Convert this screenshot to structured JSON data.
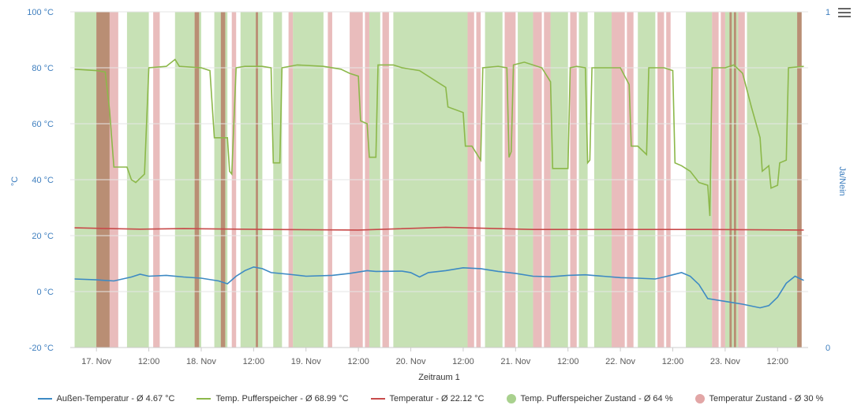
{
  "chart_data": {
    "type": "line",
    "title": "",
    "xlabel": "Zeitraum 1",
    "ylabel_left": "°C",
    "ylabel_right": "Ja/Nein",
    "ylim_left": [
      -20,
      100
    ],
    "yticks_left": [
      "-20 °C",
      "0 °C",
      "20 °C",
      "40 °C",
      "60 °C",
      "80 °C",
      "100 °C"
    ],
    "yticks_left_values": [
      -20,
      0,
      20,
      40,
      60,
      80,
      100
    ],
    "ylim_right": [
      0,
      1
    ],
    "yticks_right": [
      "0",
      "1"
    ],
    "xlim_hours": [
      -6,
      163
    ],
    "x_ticks": [
      {
        "label": "17. Nov",
        "hour": 0
      },
      {
        "label": "12:00",
        "hour": 12
      },
      {
        "label": "18. Nov",
        "hour": 24
      },
      {
        "label": "12:00",
        "hour": 36
      },
      {
        "label": "19. Nov",
        "hour": 48
      },
      {
        "label": "12:00",
        "hour": 60
      },
      {
        "label": "20. Nov",
        "hour": 72
      },
      {
        "label": "12:00",
        "hour": 84
      },
      {
        "label": "21. Nov",
        "hour": 96
      },
      {
        "label": "12:00",
        "hour": 108
      },
      {
        "label": "22. Nov",
        "hour": 120
      },
      {
        "label": "12:00",
        "hour": 132
      },
      {
        "label": "23. Nov",
        "hour": 144
      },
      {
        "label": "12:00",
        "hour": 156
      }
    ],
    "series": [
      {
        "name": "Außen-Temperatur - Ø 4.67 °C",
        "color": "#3d8ac4",
        "points": [
          [
            -5,
            4.5
          ],
          [
            0,
            4.2
          ],
          [
            4,
            3.8
          ],
          [
            8,
            5.2
          ],
          [
            10,
            6.2
          ],
          [
            12,
            5.5
          ],
          [
            16,
            5.8
          ],
          [
            20,
            5.2
          ],
          [
            24,
            4.8
          ],
          [
            28,
            3.8
          ],
          [
            30,
            2.8
          ],
          [
            32,
            5.5
          ],
          [
            34,
            7.5
          ],
          [
            36,
            8.8
          ],
          [
            38,
            8.2
          ],
          [
            40,
            6.8
          ],
          [
            44,
            6.2
          ],
          [
            48,
            5.5
          ],
          [
            54,
            5.8
          ],
          [
            58,
            6.5
          ],
          [
            62,
            7.5
          ],
          [
            64,
            7.2
          ],
          [
            70,
            7.3
          ],
          [
            72,
            6.8
          ],
          [
            74,
            5.2
          ],
          [
            76,
            6.8
          ],
          [
            80,
            7.5
          ],
          [
            84,
            8.5
          ],
          [
            88,
            8.2
          ],
          [
            92,
            7.2
          ],
          [
            96,
            6.5
          ],
          [
            100,
            5.5
          ],
          [
            104,
            5.3
          ],
          [
            108,
            5.8
          ],
          [
            112,
            6.0
          ],
          [
            116,
            5.5
          ],
          [
            120,
            5.0
          ],
          [
            124,
            4.8
          ],
          [
            128,
            4.5
          ],
          [
            130,
            5.2
          ],
          [
            132,
            6.0
          ],
          [
            134,
            6.8
          ],
          [
            136,
            5.5
          ],
          [
            138,
            2.5
          ],
          [
            140,
            -2.5
          ],
          [
            144,
            -3.5
          ],
          [
            148,
            -4.5
          ],
          [
            152,
            -5.8
          ],
          [
            154,
            -5.0
          ],
          [
            156,
            -2.0
          ],
          [
            158,
            3.0
          ],
          [
            160,
            5.5
          ],
          [
            162,
            4.0
          ]
        ]
      },
      {
        "name": "Temp. Pufferspeicher - Ø 68.99 °C",
        "color": "#8cb84a",
        "points": [
          [
            -5,
            79.5
          ],
          [
            0,
            79
          ],
          [
            2,
            78.5
          ],
          [
            3,
            65
          ],
          [
            4,
            44.5
          ],
          [
            7,
            44.5
          ],
          [
            8,
            40
          ],
          [
            9,
            39
          ],
          [
            11,
            42
          ],
          [
            12,
            80
          ],
          [
            16,
            80.5
          ],
          [
            18,
            83
          ],
          [
            19,
            80.5
          ],
          [
            24,
            80
          ],
          [
            26,
            79
          ],
          [
            27,
            55
          ],
          [
            30,
            55
          ],
          [
            30.5,
            43
          ],
          [
            31,
            42
          ],
          [
            32,
            80
          ],
          [
            34,
            80.5
          ],
          [
            38,
            80.5
          ],
          [
            40,
            80
          ],
          [
            40.5,
            46
          ],
          [
            42,
            46
          ],
          [
            42.5,
            80
          ],
          [
            46,
            81
          ],
          [
            52,
            80.5
          ],
          [
            56,
            79.5
          ],
          [
            58,
            78
          ],
          [
            60,
            77
          ],
          [
            60.5,
            61
          ],
          [
            62,
            60
          ],
          [
            62.5,
            48
          ],
          [
            64,
            48
          ],
          [
            64.5,
            81
          ],
          [
            68,
            81
          ],
          [
            70,
            80
          ],
          [
            74,
            79
          ],
          [
            78,
            75
          ],
          [
            80,
            73
          ],
          [
            80.5,
            66
          ],
          [
            84,
            64
          ],
          [
            84.5,
            52
          ],
          [
            86,
            52
          ],
          [
            88,
            47
          ],
          [
            88.5,
            80
          ],
          [
            92,
            80.5
          ],
          [
            94,
            80
          ],
          [
            94.5,
            48
          ],
          [
            95,
            50
          ],
          [
            95.5,
            81
          ],
          [
            98,
            82
          ],
          [
            102,
            80
          ],
          [
            104,
            75
          ],
          [
            104.5,
            44
          ],
          [
            108,
            44
          ],
          [
            108.5,
            80
          ],
          [
            110,
            80.5
          ],
          [
            112,
            80
          ],
          [
            112.5,
            46
          ],
          [
            113,
            47
          ],
          [
            113.5,
            80
          ],
          [
            116,
            80
          ],
          [
            120,
            80
          ],
          [
            122,
            74
          ],
          [
            122.5,
            52
          ],
          [
            124,
            52
          ],
          [
            126,
            49
          ],
          [
            126.5,
            80
          ],
          [
            130,
            80
          ],
          [
            132,
            79
          ],
          [
            132.5,
            46
          ],
          [
            134,
            45
          ],
          [
            136,
            43
          ],
          [
            138,
            39
          ],
          [
            140,
            38
          ],
          [
            140.5,
            27
          ],
          [
            141,
            80
          ],
          [
            144,
            80
          ],
          [
            146,
            81
          ],
          [
            148,
            78
          ],
          [
            150,
            66
          ],
          [
            152,
            55
          ],
          [
            152.5,
            43
          ],
          [
            154,
            45
          ],
          [
            154.5,
            37
          ],
          [
            156,
            38
          ],
          [
            156.5,
            46
          ],
          [
            158,
            47
          ],
          [
            158.5,
            80
          ],
          [
            162,
            80.5
          ]
        ]
      },
      {
        "name": "Temperatur - Ø 22.12 °C",
        "color": "#c84a4a",
        "points": [
          [
            -5,
            22.8
          ],
          [
            10,
            22.3
          ],
          [
            20,
            22.5
          ],
          [
            40,
            22.2
          ],
          [
            60,
            22.0
          ],
          [
            80,
            23.0
          ],
          [
            100,
            22.2
          ],
          [
            120,
            22.2
          ],
          [
            140,
            22.2
          ],
          [
            162,
            22.0
          ]
        ]
      }
    ],
    "state_series": [
      {
        "name": "Temp. Pufferspeicher Zustand - Ø 64 %",
        "color": "#a9d18e",
        "intervals": [
          [
            -5,
            3
          ],
          [
            7,
            12
          ],
          [
            18,
            24
          ],
          [
            27,
            30
          ],
          [
            33,
            38
          ],
          [
            40.5,
            42.5
          ],
          [
            45,
            52
          ],
          [
            62.5,
            65
          ],
          [
            68,
            85
          ],
          [
            89,
            93
          ],
          [
            96.5,
            100
          ],
          [
            104,
            108
          ],
          [
            110.5,
            112.5
          ],
          [
            114,
            118
          ],
          [
            124,
            128
          ],
          [
            135,
            141
          ],
          [
            144,
            147
          ],
          [
            149,
            161.5
          ]
        ]
      },
      {
        "name": "Temperatur Zustand - Ø 30 %",
        "color": "#e2a6a6",
        "intervals": [
          [
            0,
            5
          ],
          [
            13,
            14.5
          ],
          [
            22.5,
            23.5
          ],
          [
            28.5,
            29.5
          ],
          [
            31,
            32
          ],
          [
            36.5,
            37
          ],
          [
            44,
            45
          ],
          [
            53,
            54
          ],
          [
            58,
            61
          ],
          [
            61.5,
            62.5
          ],
          [
            65.5,
            67
          ],
          [
            85,
            86.5
          ],
          [
            87,
            88
          ],
          [
            93.5,
            96
          ],
          [
            100,
            102
          ],
          [
            102.5,
            104
          ],
          [
            108.5,
            110
          ],
          [
            118,
            121
          ],
          [
            121.5,
            123
          ],
          [
            128.5,
            130
          ],
          [
            130.5,
            131.5
          ],
          [
            141,
            142.5
          ],
          [
            143,
            144
          ],
          [
            145,
            145.5
          ],
          [
            146,
            146.5
          ],
          [
            147,
            148.5
          ],
          [
            160.5,
            161.5
          ]
        ]
      }
    ],
    "overlap_color": "#b58a6e",
    "grid": "horizontal"
  },
  "legend": [
    {
      "label": "Außen-Temperatur - Ø 4.67 °C",
      "kind": "line",
      "color": "#3d8ac4"
    },
    {
      "label": "Temp. Pufferspeicher - Ø 68.99 °C",
      "kind": "line",
      "color": "#8cb84a"
    },
    {
      "label": "Temperatur - Ø 22.12 °C",
      "kind": "line",
      "color": "#c84a4a"
    },
    {
      "label": "Temp. Pufferspeicher Zustand - Ø 64 %",
      "kind": "dot",
      "color": "#a9d18e"
    },
    {
      "label": "Temperatur Zustand - Ø 30 %",
      "kind": "dot",
      "color": "#e2a6a6"
    }
  ],
  "menu": {
    "icon": "hamburger-menu-icon"
  }
}
